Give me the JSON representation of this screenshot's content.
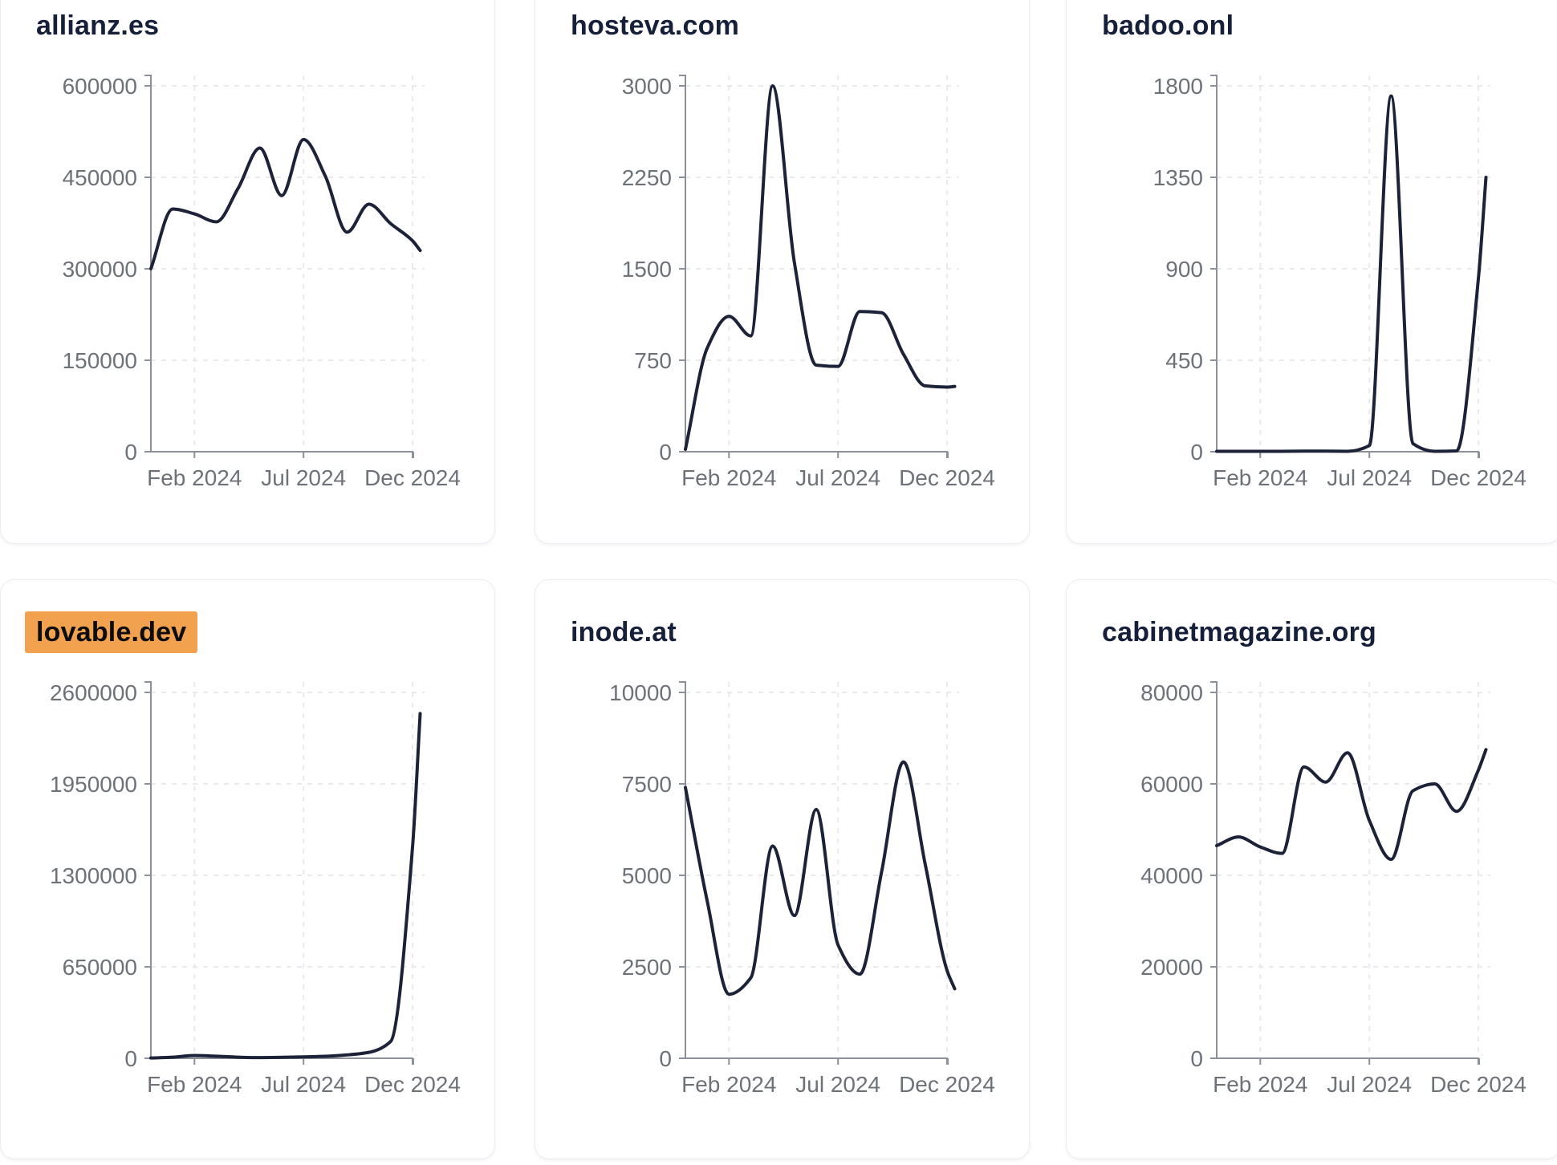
{
  "page": {
    "background": "#ffffff"
  },
  "style": {
    "card_bg": "#ffffff",
    "card_border": "#e9ecf1",
    "line_color": "#1c2339",
    "title_color": "#16203b",
    "tick_color": "#6d7278",
    "axis_color": "#8c9199",
    "grid_color": "#e9eaee",
    "highlight_bg": "#f2a24e",
    "highlight_text": "#0d0d0f"
  },
  "chart_data": [
    {
      "type": "line",
      "title": "allianz.es",
      "highlighted": false,
      "y_ticks": [
        0,
        150000,
        300000,
        450000,
        600000
      ],
      "y_max": 600000,
      "x_ticks": [
        {
          "label": "Feb 2024",
          "m": 2
        },
        {
          "label": "Jul 2024",
          "m": 7
        },
        {
          "label": "Dec 2024",
          "m": 12
        }
      ],
      "x_offsets_months": [
        0,
        1,
        2,
        3,
        4,
        5,
        6,
        7,
        8,
        9,
        10,
        11,
        12,
        12.35
      ],
      "values": [
        300000,
        398000,
        390000,
        377000,
        432000,
        498000,
        420000,
        512000,
        452000,
        360000,
        406000,
        374000,
        346000,
        330000
      ]
    },
    {
      "type": "line",
      "title": "hosteva.com",
      "highlighted": false,
      "y_ticks": [
        0,
        750,
        1500,
        2250,
        3000
      ],
      "y_max": 3000,
      "x_ticks": [
        {
          "label": "Feb 2024",
          "m": 2
        },
        {
          "label": "Jul 2024",
          "m": 7
        },
        {
          "label": "Dec 2024",
          "m": 12
        }
      ],
      "x_offsets_months": [
        0,
        1,
        2,
        3,
        4,
        5,
        6,
        7,
        8,
        9,
        10,
        11,
        12,
        12.35
      ],
      "values": [
        20,
        850,
        1110,
        950,
        3000,
        1550,
        710,
        700,
        1150,
        1140,
        800,
        540,
        530,
        535
      ]
    },
    {
      "type": "line",
      "title": "badoo.onl",
      "highlighted": false,
      "y_ticks": [
        0,
        450,
        900,
        1350,
        1800
      ],
      "y_max": 1800,
      "x_ticks": [
        {
          "label": "Feb 2024",
          "m": 2
        },
        {
          "label": "Jul 2024",
          "m": 7
        },
        {
          "label": "Dec 2024",
          "m": 12
        }
      ],
      "x_offsets_months": [
        0,
        1,
        2,
        3,
        4,
        5,
        6,
        7,
        8,
        9,
        10,
        11,
        12,
        12.35
      ],
      "values": [
        2,
        2,
        2,
        2,
        3,
        3,
        2,
        30,
        1750,
        40,
        2,
        4,
        850,
        1350
      ]
    },
    {
      "type": "line",
      "title": "lovable.dev",
      "highlighted": true,
      "y_ticks": [
        0,
        650000,
        1300000,
        1950000,
        2600000
      ],
      "y_max": 2600000,
      "x_ticks": [
        {
          "label": "Feb 2024",
          "m": 2
        },
        {
          "label": "Jul 2024",
          "m": 7
        },
        {
          "label": "Dec 2024",
          "m": 12
        }
      ],
      "x_offsets_months": [
        0,
        1,
        2,
        3,
        4,
        5,
        6,
        7,
        8,
        9,
        10,
        11,
        12,
        12.35
      ],
      "values": [
        2000,
        8000,
        20000,
        15000,
        8000,
        5000,
        7000,
        10000,
        14000,
        24000,
        42000,
        120000,
        1500000,
        2450000
      ]
    },
    {
      "type": "line",
      "title": "inode.at",
      "highlighted": false,
      "y_ticks": [
        0,
        2500,
        5000,
        7500,
        10000
      ],
      "y_max": 10000,
      "x_ticks": [
        {
          "label": "Feb 2024",
          "m": 2
        },
        {
          "label": "Jul 2024",
          "m": 7
        },
        {
          "label": "Dec 2024",
          "m": 12
        }
      ],
      "x_offsets_months": [
        0,
        1,
        2,
        3,
        4,
        5,
        6,
        7,
        8,
        9,
        10,
        11,
        12,
        12.35
      ],
      "values": [
        7400,
        4300,
        1750,
        2200,
        5800,
        3900,
        6800,
        3100,
        2300,
        5100,
        8100,
        5300,
        2400,
        1900
      ]
    },
    {
      "type": "line",
      "title": "cabinetmagazine.org",
      "highlighted": false,
      "y_ticks": [
        0,
        20000,
        40000,
        60000,
        80000
      ],
      "y_max": 80000,
      "x_ticks": [
        {
          "label": "Feb 2024",
          "m": 2
        },
        {
          "label": "Jul 2024",
          "m": 7
        },
        {
          "label": "Dec 2024",
          "m": 12
        }
      ],
      "x_offsets_months": [
        0,
        1,
        2,
        3,
        4,
        5,
        6,
        7,
        8,
        9,
        10,
        11,
        12,
        12.35
      ],
      "values": [
        46500,
        48400,
        46200,
        44800,
        63700,
        60400,
        66800,
        52000,
        43500,
        58500,
        60000,
        54000,
        63000,
        67500
      ]
    }
  ]
}
